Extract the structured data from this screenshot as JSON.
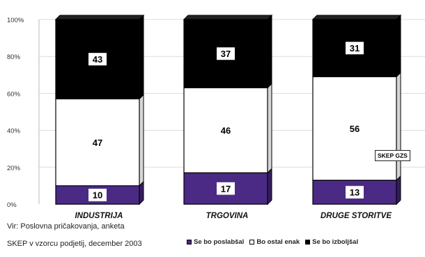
{
  "chart_data": {
    "type": "bar",
    "stacked": true,
    "percent": true,
    "categories": [
      "INDUSTRIJA",
      "TRGOVINA",
      "DRUGE STORITVE"
    ],
    "series": [
      {
        "name": "Se bo poslabšal",
        "values": [
          10,
          17,
          13
        ],
        "color": "#4a2a84"
      },
      {
        "name": "Bo ostal enak",
        "values": [
          47,
          46,
          56
        ],
        "color": "#ffffff"
      },
      {
        "name": "Se bo izboljšal",
        "values": [
          43,
          37,
          31
        ],
        "color": "#000000"
      }
    ],
    "y_ticks": [
      "0%",
      "20%",
      "40%",
      "60%",
      "80%",
      "100%"
    ],
    "ylim": [
      0,
      100
    ],
    "grid": true,
    "legend_position": "bottom-right"
  },
  "source_lines": [
    "Vir: Poslovna pričakovanja, anketa",
    "SKEP v vzorcu podjetij, december 2003"
  ],
  "stamp_text": "SKEP GZS"
}
